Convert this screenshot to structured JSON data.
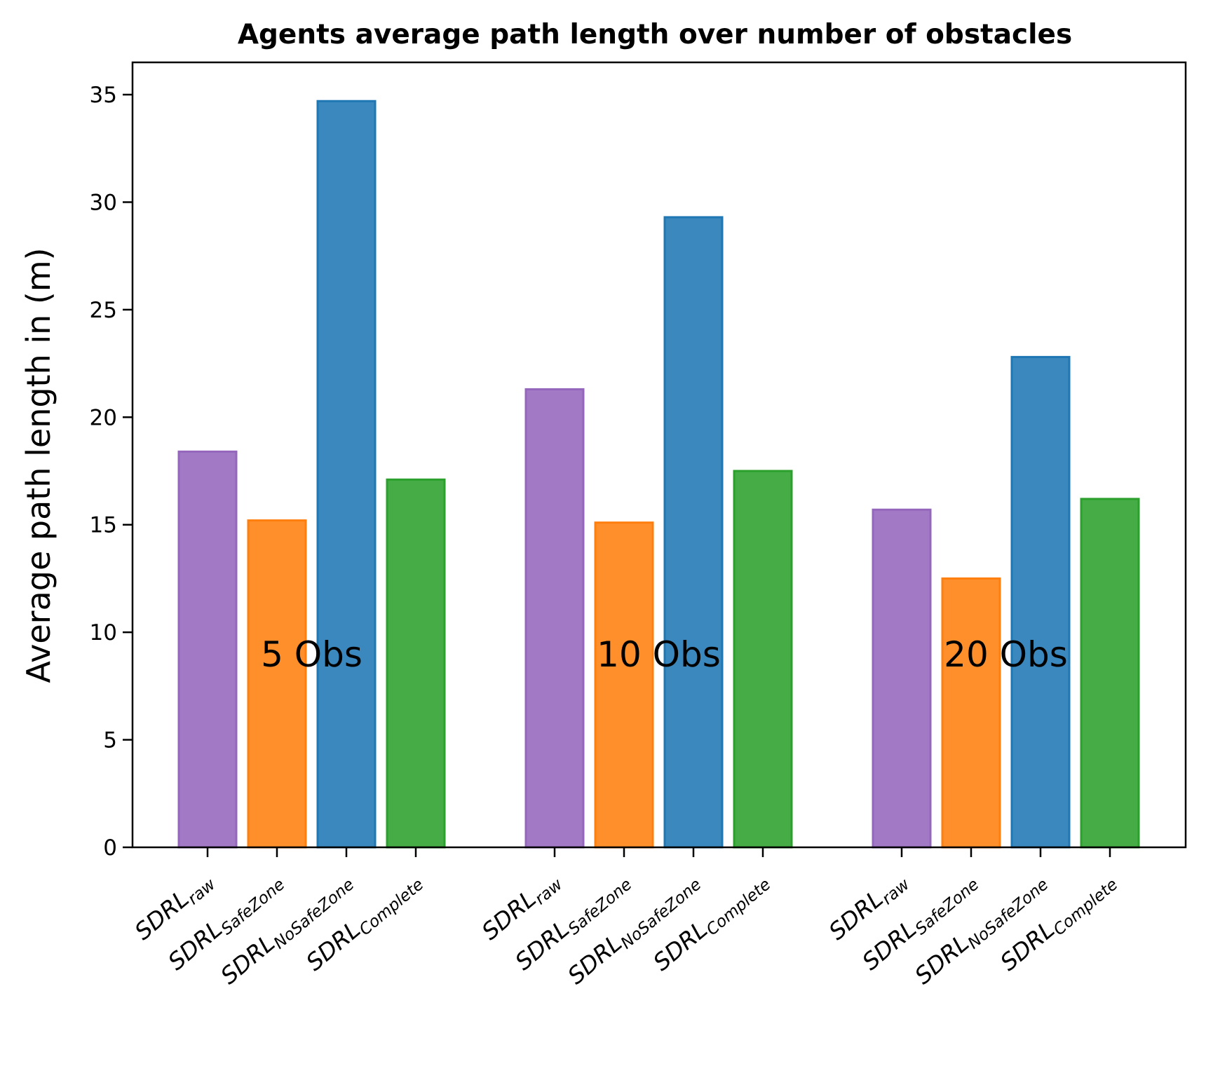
{
  "chart_data": {
    "type": "bar",
    "title": "Agents average path length over number of obstacles",
    "xlabel": "",
    "ylabel": "Average path length in (m)",
    "ylim": [
      0,
      36.5
    ],
    "yticks": [
      0,
      5,
      10,
      15,
      20,
      25,
      30,
      35
    ],
    "grid": false,
    "legend": "none",
    "groups": [
      {
        "label": "5 Obs",
        "bars": [
          {
            "base": "SDRL",
            "sub": "raw",
            "value": 18.4,
            "color": "#9467bd"
          },
          {
            "base": "SDRL",
            "sub": "SafeZone",
            "value": 15.2,
            "color": "#ff7f0e"
          },
          {
            "base": "SDRL",
            "sub": "NoSafeZone",
            "value": 34.7,
            "color": "#1f77b4"
          },
          {
            "base": "SDRL",
            "sub": "Complete",
            "value": 17.1,
            "color": "#2ca02c"
          }
        ]
      },
      {
        "label": "10 Obs",
        "bars": [
          {
            "base": "SDRL",
            "sub": "raw",
            "value": 21.3,
            "color": "#9467bd"
          },
          {
            "base": "SDRL",
            "sub": "SafeZone",
            "value": 15.1,
            "color": "#ff7f0e"
          },
          {
            "base": "SDRL",
            "sub": "NoSafeZone",
            "value": 29.3,
            "color": "#1f77b4"
          },
          {
            "base": "SDRL",
            "sub": "Complete",
            "value": 17.5,
            "color": "#2ca02c"
          }
        ]
      },
      {
        "label": "20 Obs",
        "bars": [
          {
            "base": "SDRL",
            "sub": "raw",
            "value": 15.7,
            "color": "#9467bd"
          },
          {
            "base": "SDRL",
            "sub": "SafeZone",
            "value": 12.5,
            "color": "#ff7f0e"
          },
          {
            "base": "SDRL",
            "sub": "NoSafeZone",
            "value": 22.8,
            "color": "#1f77b4"
          },
          {
            "base": "SDRL",
            "sub": "Complete",
            "value": 16.2,
            "color": "#2ca02c"
          }
        ]
      }
    ],
    "label_value": 9.0
  }
}
